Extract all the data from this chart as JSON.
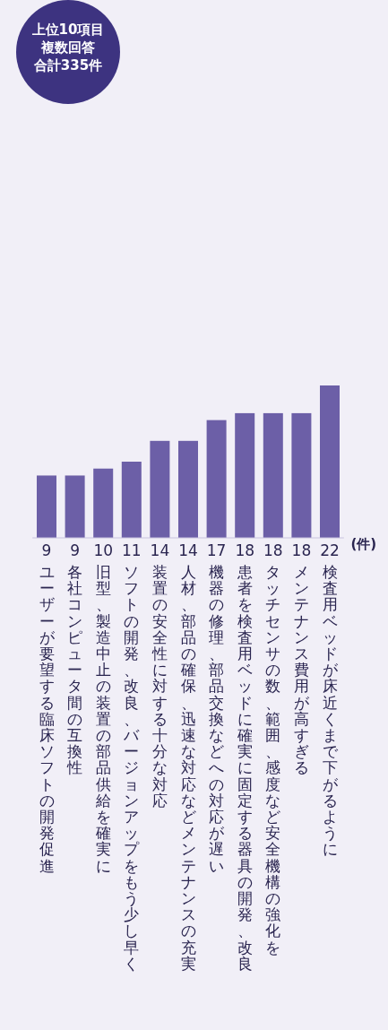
{
  "chart_data": {
    "type": "bar",
    "annotations": [
      "上位10項目",
      "複数回答",
      "合計335件"
    ],
    "ylabel": "(件)",
    "categories": [
      "ユーザーが要望する臨床ソフトの開発促進",
      "各社コンピュータ間の互換性",
      "旧型、製造中止の装置の部品供給を確実に",
      "ソフトの開発、改良、バージョンアップをもう少し早く",
      "装置の安全性に対する十分な対応",
      "人材、部品の確保、迅速な対応などメンテナンスの充実",
      "機器の修理、部品交換などへの対応が遅い",
      "患者を検査用ベッドに確実に固定する器具の開発、改良",
      "タッチセンサの数、範囲、感度など安全機構の強化を",
      "メンテナンス費用が高すぎる",
      "検査用ベッドが床近くまで下がるように"
    ],
    "values": [
      9,
      9,
      10,
      11,
      14,
      14,
      17,
      18,
      18,
      18,
      22
    ],
    "color": "#6c5fa7",
    "data_labels": true
  }
}
